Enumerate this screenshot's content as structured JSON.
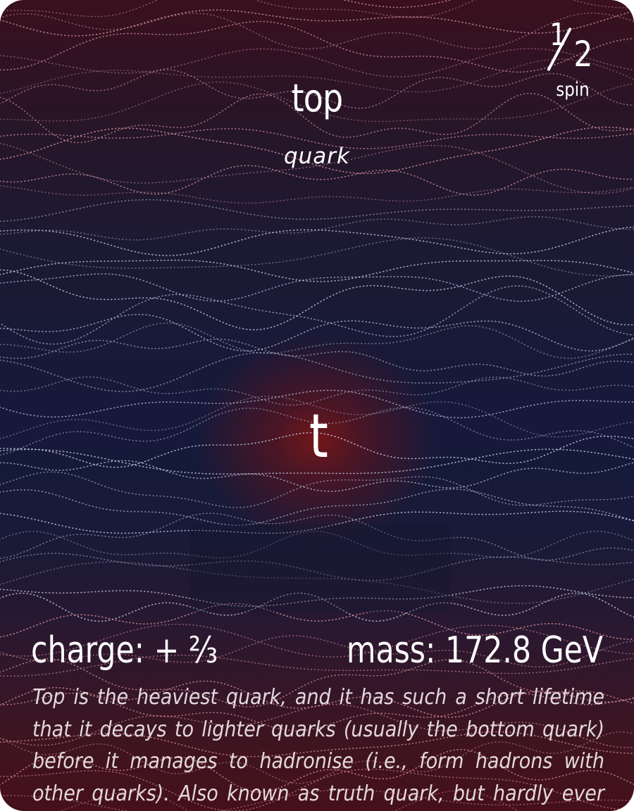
{
  "card": {
    "name": "top",
    "type": "quark",
    "symbol": "t",
    "spin": {
      "numerator": "1",
      "denominator": "2",
      "label": "spin"
    },
    "charge": "charge: + ⅔",
    "mass": "mass: 172.8 GeV",
    "description": "Top is the heaviest quark, and it has such a short lifetime that it decays to lighter quarks (usually the bottom quark) before it manages to hadronise (i.e., form hadrons with other quarks). Also known as truth quark, but hardly ever called that."
  },
  "colors": {
    "top_tint": "#3a101d",
    "middle_tint": "#16193a",
    "bottom_tint": "#45101a",
    "glow": "#781618",
    "text": "#ffffff"
  }
}
